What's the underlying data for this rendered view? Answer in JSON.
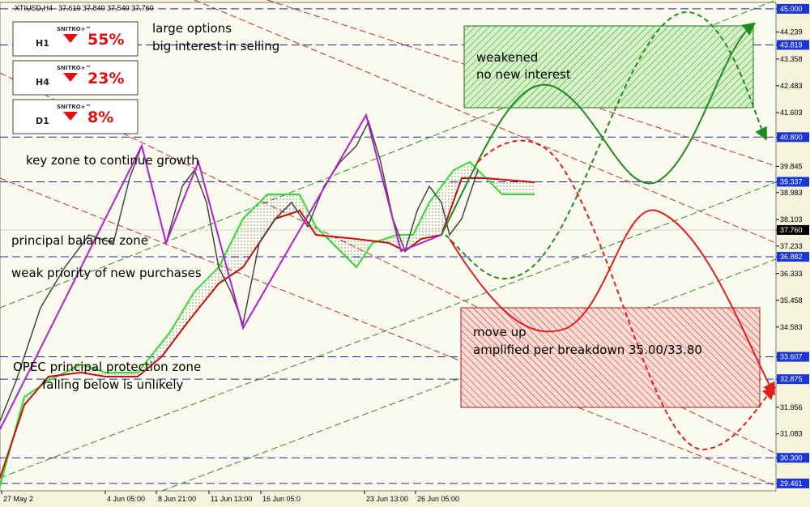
{
  "header": {
    "symbol": "XTIUSD,H4",
    "quote": "37.610 37.840 37.540 37.760"
  },
  "signals": [
    {
      "brand": "SNITRO+™",
      "timeframe": "H1",
      "percent": "55%"
    },
    {
      "brand": "SNITRO+™",
      "timeframe": "H4",
      "percent": "23%"
    },
    {
      "brand": "SNITRO+™",
      "timeframe": "D1",
      "percent": "8%"
    }
  ],
  "annotations": [
    "large options",
    "big interest in selling",
    "weakened",
    "no new interest",
    "key zone to continue growth",
    "principal balance zone",
    "weak priority of new purchases",
    "OPEC principal protection zone",
    "falling below is unlikely",
    "move up",
    "amplified per breakdown 35.00/33.80"
  ],
  "price_axis": {
    "range": [
      29.22,
      45.21
    ],
    "ticks": [
      {
        "value": 45.0,
        "label": "45.000",
        "kind": "level"
      },
      {
        "value": 44.239,
        "label": "44.239",
        "kind": "plain"
      },
      {
        "value": 43.819,
        "label": "43.819",
        "kind": "level"
      },
      {
        "value": 43.358,
        "label": "43.358",
        "kind": "plain"
      },
      {
        "value": 42.483,
        "label": "42.483",
        "kind": "plain"
      },
      {
        "value": 41.603,
        "label": "41.603",
        "kind": "plain"
      },
      {
        "value": 40.8,
        "label": "40.800",
        "kind": "level"
      },
      {
        "value": 39.845,
        "label": "39.845",
        "kind": "plain"
      },
      {
        "value": 39.337,
        "label": "39.337",
        "kind": "level"
      },
      {
        "value": 38.983,
        "label": "38.983",
        "kind": "plain"
      },
      {
        "value": 38.103,
        "label": "38.103",
        "kind": "plain"
      },
      {
        "value": 37.76,
        "label": "37.760",
        "kind": "current"
      },
      {
        "value": 37.233,
        "label": "37.233",
        "kind": "plain"
      },
      {
        "value": 36.882,
        "label": "36.882",
        "kind": "level"
      },
      {
        "value": 36.333,
        "label": "36.333",
        "kind": "plain"
      },
      {
        "value": 35.458,
        "label": "35.458",
        "kind": "plain"
      },
      {
        "value": 34.583,
        "label": "34.583",
        "kind": "plain"
      },
      {
        "value": 33.607,
        "label": "33.607",
        "kind": "level"
      },
      {
        "value": 32.875,
        "label": "32.875",
        "kind": "level"
      },
      {
        "value": 31.956,
        "label": "31.956",
        "kind": "plain"
      },
      {
        "value": 31.083,
        "label": "31.083",
        "kind": "plain"
      },
      {
        "value": 30.3,
        "label": "30.300",
        "kind": "level"
      },
      {
        "value": 29.461,
        "label": "29.461",
        "kind": "level"
      }
    ]
  },
  "time_axis": [
    "27 May 2",
    "4 Jun 05:00",
    "8 Jun 21:00",
    "11 Jun 13:00",
    "16 Jun 05:0",
    "23 Jun 13:00",
    "26 Jun 05:00"
  ]
}
